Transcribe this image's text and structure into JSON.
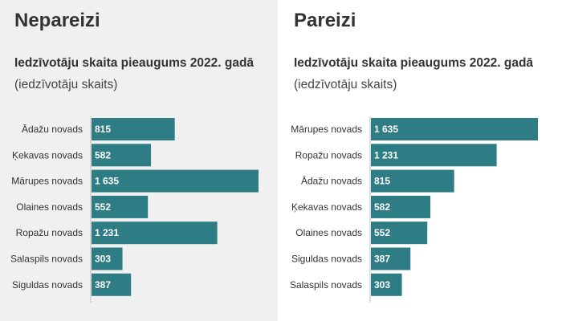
{
  "panels": [
    {
      "heading": "Nepareizi",
      "chart_data": {
        "type": "bar",
        "orientation": "horizontal",
        "title": "Iedzīvotāju skaita pieaugums 2022. gadā",
        "subtitle": "(iedzīvotāju skaits)",
        "categories": [
          "Ādažu novads",
          "Ķekavas novads",
          "Mārupes novads",
          "Olaines novads",
          "Ropažu novads",
          "Salaspils novads",
          "Siguldas novads"
        ],
        "values": [
          815,
          582,
          1635,
          552,
          1231,
          303,
          387
        ],
        "value_labels": [
          "815",
          "582",
          "1 635",
          "552",
          "1 231",
          "303",
          "387"
        ],
        "xlim": [
          0,
          1635
        ],
        "grid": false,
        "bar_color": "#2e7d85"
      }
    },
    {
      "heading": "Pareizi",
      "chart_data": {
        "type": "bar",
        "orientation": "horizontal",
        "title": "Iedzīvotāju skaita pieaugums 2022. gadā",
        "subtitle": "(iedzīvotāju skaits)",
        "categories": [
          "Mārupes novads",
          "Ropažu novads",
          "Ādažu novads",
          "Ķekavas novads",
          "Olaines novads",
          "Siguldas novads",
          "Salaspils novads"
        ],
        "values": [
          1635,
          1231,
          815,
          582,
          552,
          387,
          303
        ],
        "value_labels": [
          "1 635",
          "1 231",
          "815",
          "582",
          "552",
          "387",
          "303"
        ],
        "xlim": [
          0,
          1635
        ],
        "grid": false,
        "bar_color": "#2e7d85"
      }
    }
  ]
}
